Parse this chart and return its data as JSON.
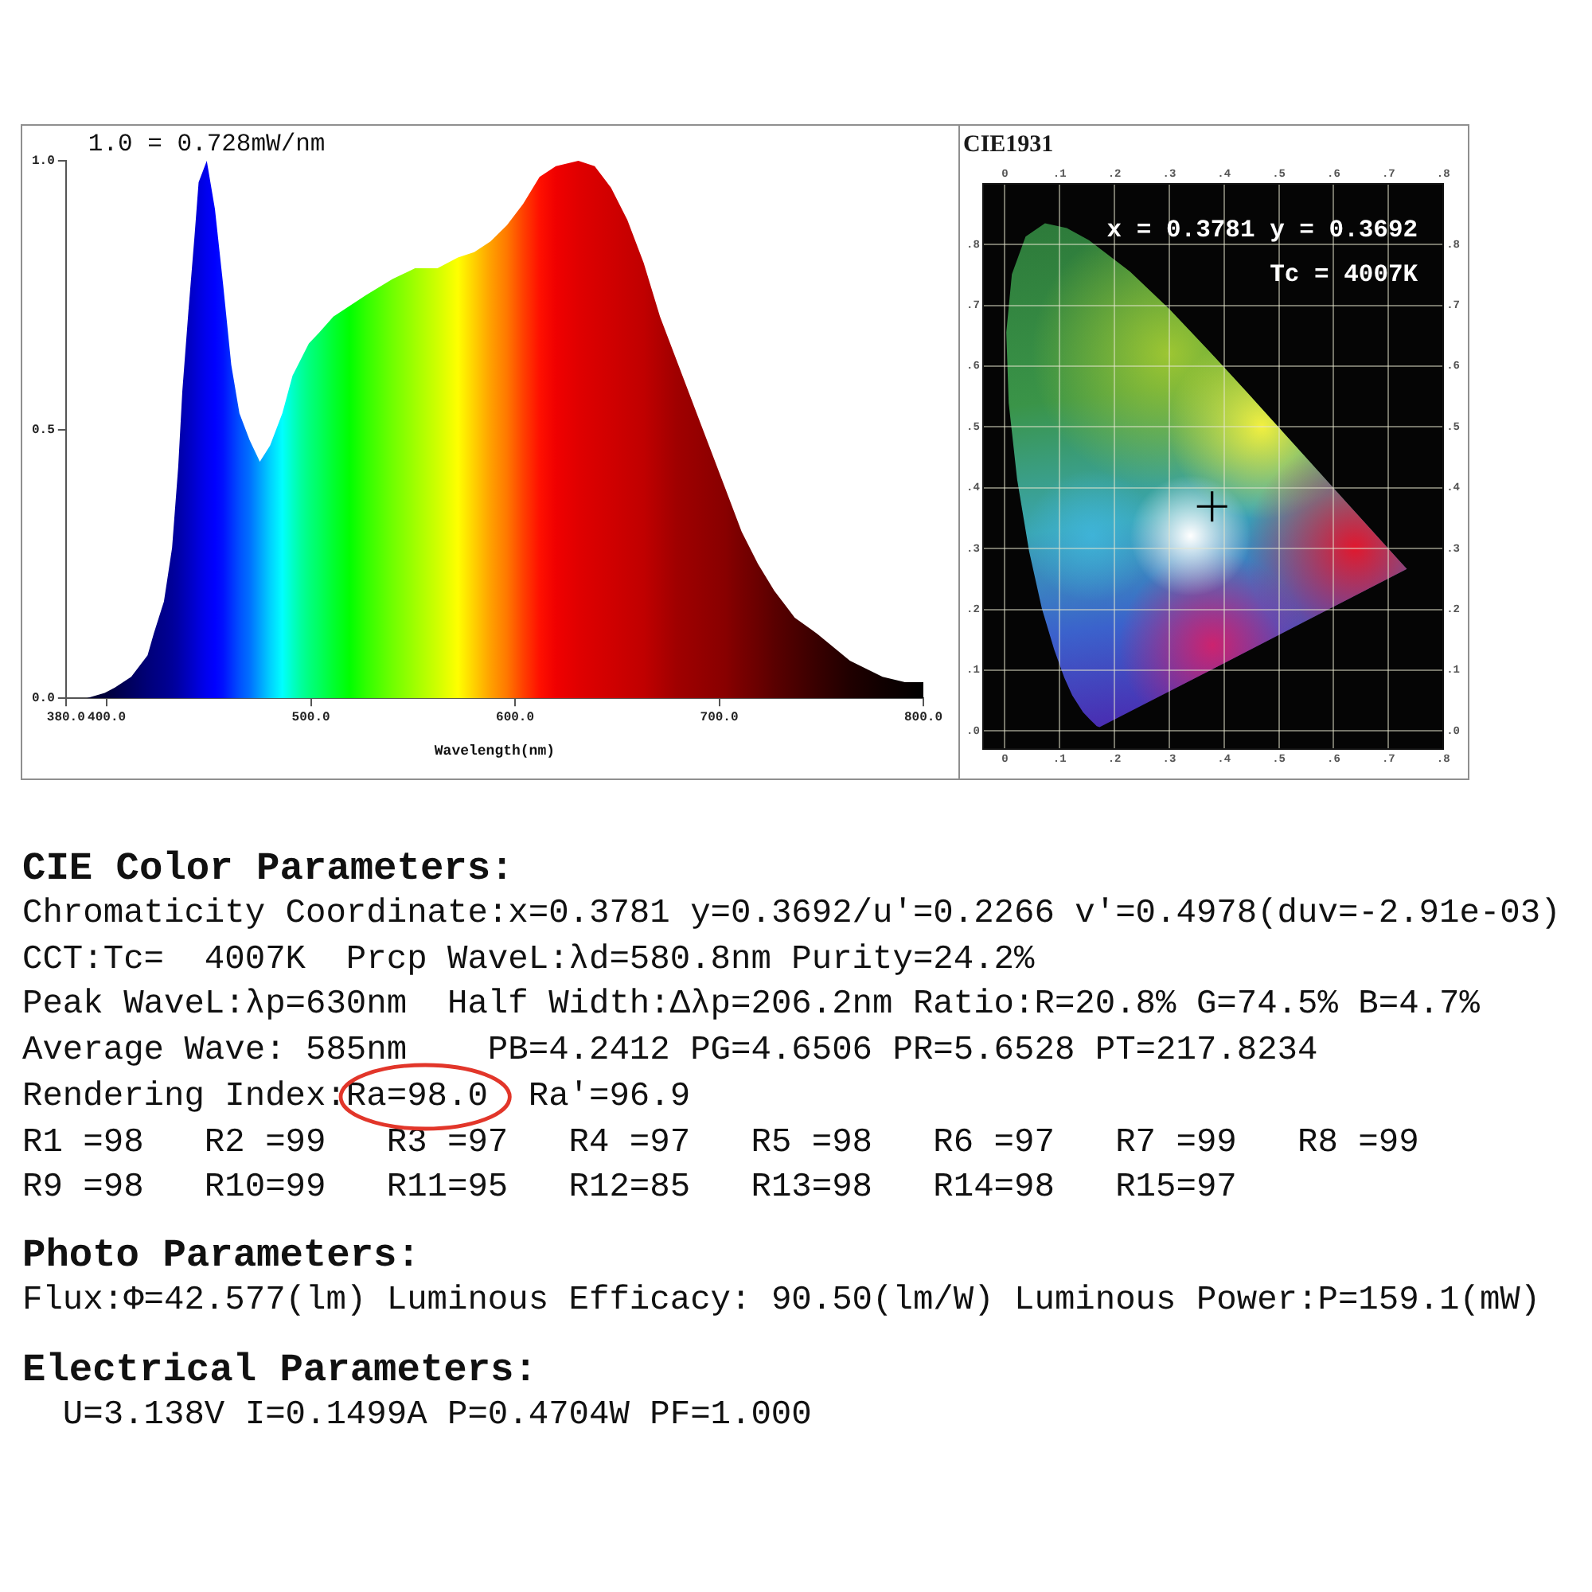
{
  "chart_data": [
    {
      "type": "area",
      "xlabel": "Wavelength(nm)",
      "annotations": [
        "1.0 = 0.728mW/nm"
      ],
      "x": [
        380,
        390,
        399,
        404,
        412,
        420,
        423,
        428,
        432,
        435,
        437,
        440,
        443,
        445,
        449,
        453,
        457,
        461,
        465,
        470,
        475,
        480,
        486,
        491,
        495,
        499,
        504,
        511,
        519,
        527,
        540,
        551,
        562,
        572,
        580,
        588,
        596,
        604,
        612,
        620,
        631,
        639,
        647,
        655,
        663,
        671,
        679,
        687,
        695,
        703,
        711,
        719,
        727,
        737,
        748,
        764,
        780,
        791,
        800
      ],
      "values": [
        0.0,
        0.0,
        0.01,
        0.02,
        0.04,
        0.08,
        0.12,
        0.18,
        0.28,
        0.43,
        0.57,
        0.72,
        0.86,
        0.96,
        1.0,
        0.91,
        0.77,
        0.62,
        0.53,
        0.48,
        0.44,
        0.47,
        0.53,
        0.6,
        0.63,
        0.66,
        0.68,
        0.71,
        0.73,
        0.75,
        0.78,
        0.8,
        0.8,
        0.82,
        0.83,
        0.85,
        0.88,
        0.92,
        0.97,
        0.99,
        1.0,
        0.99,
        0.95,
        0.89,
        0.81,
        0.71,
        0.63,
        0.55,
        0.47,
        0.39,
        0.31,
        0.25,
        0.2,
        0.15,
        0.12,
        0.07,
        0.04,
        0.03,
        0.03
      ],
      "colors": [
        "#000020",
        "#000030",
        "#00003a",
        "#000048",
        "#000060",
        "#000078",
        "#000080",
        "#00008c",
        "#000098",
        "#0000a5",
        "#0000b0",
        "#0000c0",
        "#0000d0",
        "#0000dc",
        "#0000f0",
        "#0000ff",
        "#0010ff",
        "#0030ff",
        "#0050ff",
        "#0070ff",
        "#00a0ff",
        "#00d0ff",
        "#00ffff",
        "#00ffc8",
        "#00ffa0",
        "#00ff80",
        "#00ff60",
        "#00ff30",
        "#00ff00",
        "#30ff00",
        "#70ff00",
        "#a0ff00",
        "#d0ff00",
        "#ffff00",
        "#ffd000",
        "#ffa000",
        "#ff7800",
        "#ff4000",
        "#ff1000",
        "#f00000",
        "#e00000",
        "#d80000",
        "#d00000",
        "#c80000",
        "#c00000",
        "#b00000",
        "#a00000",
        "#980000",
        "#900000",
        "#880000",
        "#780000",
        "#6a0000",
        "#5a0000",
        "#4a0000",
        "#380000",
        "#200000",
        "#100000",
        "#080000",
        "#000000"
      ],
      "xlim": [
        380,
        800
      ],
      "ylim": [
        0,
        1.0
      ],
      "xticks": [
        {
          "value": 380,
          "label": "380.0"
        },
        {
          "value": 400,
          "label": "400.0"
        },
        {
          "value": 500,
          "label": "500.0"
        },
        {
          "value": 600,
          "label": "600.0"
        },
        {
          "value": 700,
          "label": "700.0"
        },
        {
          "value": 800,
          "label": "800.0"
        }
      ],
      "yticks": [
        {
          "value": 0,
          "label": "0.0"
        },
        0.5,
        {
          "value": 1.0,
          "label": "1.0"
        }
      ]
    },
    {
      "type": "scatter",
      "title": "CIE1931",
      "x": [
        0.3781
      ],
      "values": [
        0.3692
      ],
      "color": "#000000",
      "marker": "cross",
      "grid": true,
      "annotations": [
        "x = 0.3781 y = 0.3692",
        "Tc = 4007K"
      ],
      "xlim": [
        -0.04,
        0.8
      ],
      "ylim": [
        -0.03,
        0.9
      ],
      "xticks": [
        {
          "value": 0,
          "label": "0"
        },
        {
          "value": 0.1,
          "label": ".1"
        },
        {
          "value": 0.2,
          "label": ".2"
        },
        {
          "value": 0.3,
          "label": ".3"
        },
        {
          "value": 0.4,
          "label": ".4"
        },
        {
          "value": 0.5,
          "label": ".5"
        },
        {
          "value": 0.6,
          "label": ".6"
        },
        {
          "value": 0.7,
          "label": ".7"
        },
        {
          "value": 0.8,
          "label": ".8"
        }
      ],
      "yticks": [
        {
          "value": 0,
          "label": ".0"
        },
        {
          "value": 0.1,
          "label": ".1"
        },
        {
          "value": 0.2,
          "label": ".2"
        },
        {
          "value": 0.3,
          "label": ".3"
        },
        {
          "value": 0.4,
          "label": ".4"
        },
        {
          "value": 0.5,
          "label": ".5"
        },
        {
          "value": 0.6,
          "label": ".6"
        },
        {
          "value": 0.7,
          "label": ".7"
        },
        {
          "value": 0.8,
          "label": ".8"
        }
      ],
      "x2lim": [
        -0.04,
        0.8
      ],
      "x2ticks": [
        {
          "value": 0,
          "label": "0"
        },
        {
          "value": 0.1,
          "label": ".1"
        },
        {
          "value": 0.2,
          "label": ".2"
        },
        {
          "value": 0.3,
          "label": ".3"
        },
        {
          "value": 0.4,
          "label": ".4"
        },
        {
          "value": 0.5,
          "label": ".5"
        },
        {
          "value": 0.6,
          "label": ".6"
        },
        {
          "value": 0.7,
          "label": ".7"
        },
        {
          "value": 0.8,
          "label": ".8"
        }
      ],
      "y2lim": [
        -0.03,
        0.9
      ],
      "y2ticks": [
        {
          "value": 0,
          "label": ".0"
        },
        {
          "value": 0.1,
          "label": ".1"
        },
        {
          "value": 0.2,
          "label": ".2"
        },
        {
          "value": 0.3,
          "label": ".3"
        },
        {
          "value": 0.4,
          "label": ".4"
        },
        {
          "value": 0.5,
          "label": ".5"
        },
        {
          "value": 0.6,
          "label": ".6"
        },
        {
          "value": 0.7,
          "label": ".7"
        },
        {
          "value": 0.8,
          "label": ".8"
        }
      ]
    },
    {
      "type": "other",
      "title": "CIE Color Parameters:",
      "annotations": [
        "Chromaticity Coordinate:x=0.3781 y=0.3692/u'=0.2266 v'=0.4978(duv=-2.91e-03)",
        "CCT:Tc=  4007K  Prcp WaveL:λd=580.8nm Purity=24.2%",
        "Peak WaveL:λp=630nm  Half Width:Δλp=206.2nm Ratio:R=20.8% G=74.5% B=4.7%",
        "Average Wave: 585nm    PB=4.2412 PG=4.6506 PR=5.6528 PT=217.8234",
        "Rendering Index:Ra=98.0  Ra'=96.9",
        "R1 =98   R2 =99   R3 =97   R4 =97   R5 =98   R6 =97   R7 =99   R8 =99",
        "R9 =98   R10=99   R11=95   R12=85   R13=98   R14=98   R15=97"
      ]
    },
    {
      "type": "other",
      "title": "Photo Parameters:",
      "annotations": [
        "Flux:Φ=42.577(lm) Luminous Efficacy: 90.50(lm/W) Luminous Power:P=159.1(mW)"
      ]
    },
    {
      "type": "other",
      "title": "Electrical Parameters:",
      "annotations": [
        "U=3.138V I=0.1499A P=0.4704W PF=1.000"
      ]
    }
  ]
}
